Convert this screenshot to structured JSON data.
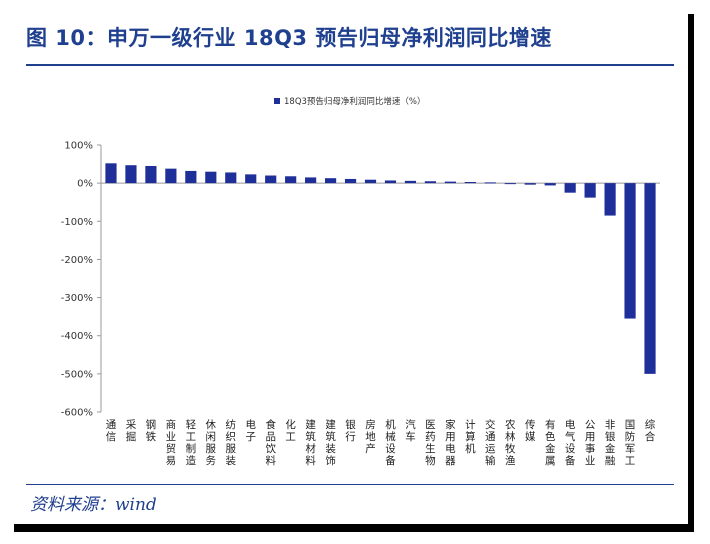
{
  "figure": {
    "title": "图 10：申万一级行业 18Q3 预告归母净利润同比增速",
    "source": "资料来源：wind"
  },
  "colors": {
    "bar": "#1f2f9a",
    "title": "#1f3f8f",
    "axis": "#999999"
  },
  "chart_data": {
    "type": "bar",
    "legend": "18Q3预告归母净利润同比增速（%）",
    "legend_position": "top-center",
    "grid": false,
    "ylim": [
      -600,
      100
    ],
    "yticks": [
      100,
      0,
      -100,
      -200,
      -300,
      -400,
      -500,
      -600
    ],
    "ytick_labels": [
      "100%",
      "0%",
      "-100%",
      "-200%",
      "-300%",
      "-400%",
      "-500%",
      "-600%"
    ],
    "categories": [
      "通信",
      "采掘",
      "钢铁",
      "商业贸易",
      "轻工制造",
      "休闲服务",
      "纺织服装",
      "电子",
      "食品饮料",
      "化工",
      "建筑材料",
      "建筑装饰",
      "银行",
      "房地产",
      "机械设备",
      "汽车",
      "医药生物",
      "家用电器",
      "计算机",
      "交通运输",
      "农林牧渔",
      "传媒",
      "有色金属",
      "电气设备",
      "公用事业",
      "非银金融",
      "国防军工",
      "综合"
    ],
    "values": [
      52,
      47,
      45,
      38,
      32,
      30,
      28,
      23,
      20,
      18,
      15,
      13,
      11,
      9,
      7,
      6,
      5,
      4,
      3,
      2,
      -2,
      -4,
      -6,
      -25,
      -38,
      -85,
      -355,
      -500
    ]
  }
}
